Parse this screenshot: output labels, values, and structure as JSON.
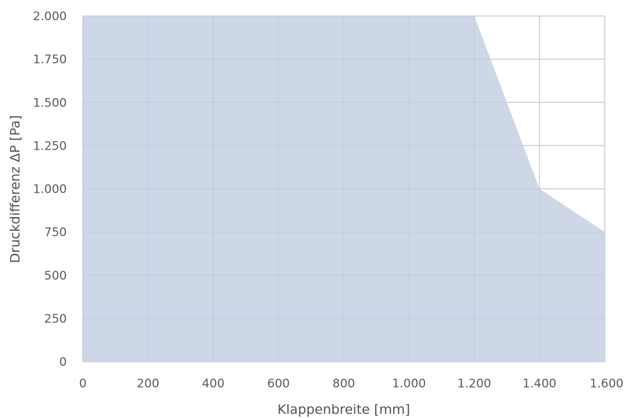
{
  "chart_data": {
    "type": "area",
    "xlabel": "Klappenbreite [mm]",
    "ylabel": "Druckdifferenz ΔP [Pa]",
    "xlim": [
      0,
      1600
    ],
    "ylim": [
      0,
      2000
    ],
    "x_ticks": [
      0,
      200,
      400,
      600,
      800,
      1000,
      1200,
      1400,
      1600
    ],
    "x_tick_labels": [
      "0",
      "200",
      "400",
      "600",
      "800",
      "1.000",
      "1.200",
      "1.400",
      "1.600"
    ],
    "y_ticks": [
      0,
      250,
      500,
      750,
      1000,
      1250,
      1500,
      1750,
      2000
    ],
    "y_tick_labels": [
      "0",
      "250",
      "500",
      "750",
      "1.000",
      "1.250",
      "1.500",
      "1.750",
      "2.000"
    ],
    "grid": true,
    "series": [
      {
        "x": [
          0,
          1200,
          1400,
          1600
        ],
        "y": [
          2000,
          2000,
          1000,
          750
        ]
      }
    ],
    "fill_color": "#cdd7e8",
    "grid_color": "#d8dadd"
  }
}
